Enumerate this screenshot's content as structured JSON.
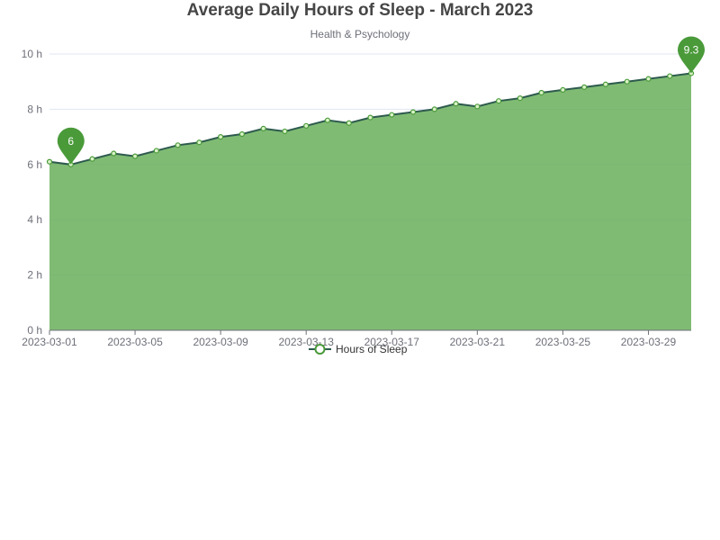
{
  "chart_data": {
    "type": "area",
    "title": "Average Daily Hours of Sleep - March 2023",
    "subtitle": "Health & Psychology",
    "x": [
      "2023-03-01",
      "2023-03-02",
      "2023-03-03",
      "2023-03-04",
      "2023-03-05",
      "2023-03-06",
      "2023-03-07",
      "2023-03-08",
      "2023-03-09",
      "2023-03-10",
      "2023-03-11",
      "2023-03-12",
      "2023-03-13",
      "2023-03-14",
      "2023-03-15",
      "2023-03-16",
      "2023-03-17",
      "2023-03-18",
      "2023-03-19",
      "2023-03-20",
      "2023-03-21",
      "2023-03-22",
      "2023-03-23",
      "2023-03-24",
      "2023-03-25",
      "2023-03-26",
      "2023-03-27",
      "2023-03-28",
      "2023-03-29",
      "2023-03-30",
      "2023-03-31"
    ],
    "series": [
      {
        "name": "Hours of Sleep",
        "values": [
          6.1,
          6.0,
          6.2,
          6.4,
          6.3,
          6.5,
          6.7,
          6.8,
          7.0,
          7.1,
          7.3,
          7.2,
          7.4,
          7.6,
          7.5,
          7.7,
          7.8,
          7.9,
          8.0,
          8.2,
          8.1,
          8.3,
          8.4,
          8.6,
          8.7,
          8.8,
          8.9,
          9.0,
          9.1,
          9.2,
          9.3
        ]
      }
    ],
    "x_tick_labels": [
      "2023-03-01",
      "2023-03-05",
      "2023-03-09",
      "2023-03-13",
      "2023-03-17",
      "2023-03-21",
      "2023-03-25",
      "2023-03-29"
    ],
    "y_ticks": [
      0,
      2,
      4,
      6,
      8,
      10
    ],
    "y_tick_suffix": " h",
    "ylim": [
      0,
      10
    ],
    "markers": [
      {
        "type": "min",
        "x": "2023-03-02",
        "value": 6,
        "label": "6"
      },
      {
        "type": "max",
        "x": "2023-03-31",
        "value": 9.3,
        "label": "9.3"
      }
    ],
    "legend_position": "bottom",
    "grid": true,
    "colors": {
      "area_fill": "#6aaf5c",
      "line": "#2d5a4e",
      "point_fill": "#d9f2c7",
      "point_stroke": "#4a9a3a",
      "pin": "#4a9a3a",
      "grid": "#e0e6f1",
      "axis": "#6e7079"
    }
  }
}
